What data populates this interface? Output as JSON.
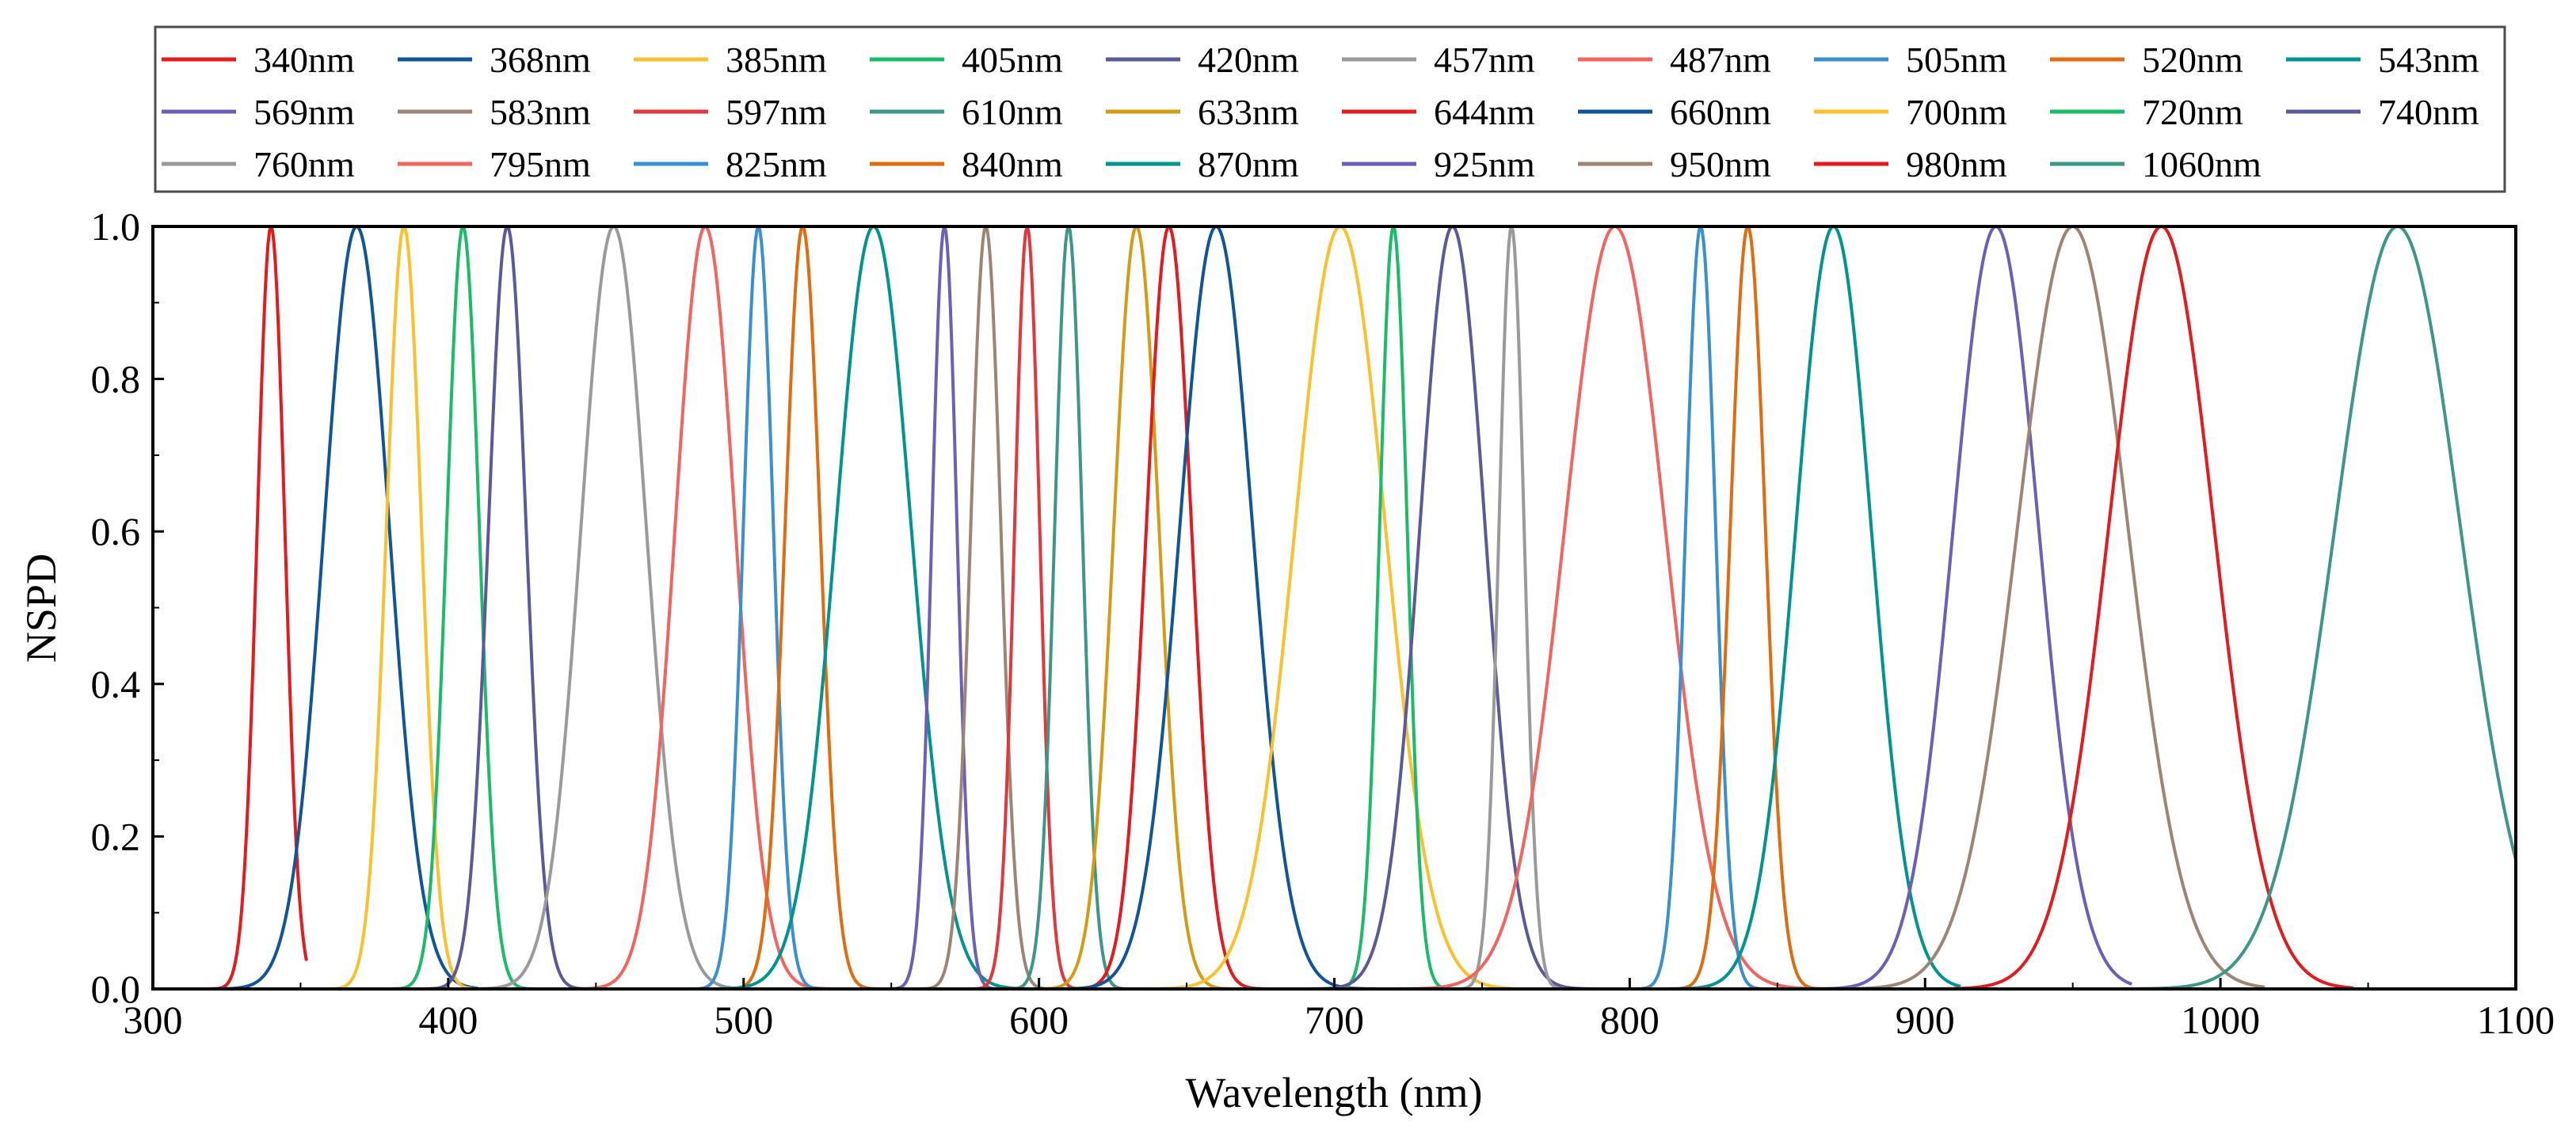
{
  "chart_data": {
    "type": "line",
    "title": "",
    "xlabel": "Wavelength (nm)",
    "ylabel": "NSPD",
    "xlim": [
      300,
      1100
    ],
    "ylim": [
      0,
      1.0
    ],
    "xticks": [
      300,
      400,
      500,
      600,
      700,
      800,
      900,
      1000,
      1100
    ],
    "xtick_labels": [
      "300",
      "400",
      "500",
      "600",
      "700",
      "800",
      "900",
      "1000",
      "1100"
    ],
    "yticks": [
      0,
      0.2,
      0.4,
      0.6,
      0.8,
      1.0
    ],
    "ytick_labels": [
      "0.0",
      "0.2",
      "0.4",
      "0.6",
      "0.8",
      "1.0"
    ],
    "grid": false,
    "legend_location": "top",
    "series_shape": "gaussian peak normalized to 1.0; each curve spans the listed wavelength range",
    "series": [
      {
        "name": "340nm",
        "peak": 340,
        "fwhm": 11,
        "range": [
          301,
          352
        ],
        "color": "#e41a1c"
      },
      {
        "name": "368nm",
        "peak": 369,
        "fwhm": 26,
        "range": [
          300,
          410
        ],
        "color": "#0f5597"
      },
      {
        "name": "385nm",
        "peak": 385,
        "fwhm": 14,
        "range": [
          342,
          420
        ],
        "color": "#fbc02d"
      },
      {
        "name": "405nm",
        "peak": 405,
        "fwhm": 13,
        "range": [
          362,
          450
        ],
        "color": "#1abc6a"
      },
      {
        "name": "420nm",
        "peak": 420,
        "fwhm": 15,
        "range": [
          378,
          466
        ],
        "color": "#5a5a9a"
      },
      {
        "name": "457nm",
        "peak": 456,
        "fwhm": 26,
        "range": [
          400,
          520
        ],
        "color": "#9a9a9a"
      },
      {
        "name": "487nm",
        "peak": 487,
        "fwhm": 24,
        "range": [
          440,
          534
        ],
        "color": "#f4645e"
      },
      {
        "name": "505nm",
        "peak": 505,
        "fwhm": 12,
        "range": [
          470,
          545
        ],
        "color": "#3a8fcf"
      },
      {
        "name": "520nm",
        "peak": 520,
        "fwhm": 14,
        "range": [
          480,
          565
        ],
        "color": "#e06c0f"
      },
      {
        "name": "543nm",
        "peak": 544,
        "fwhm": 30,
        "range": [
          490,
          610
        ],
        "color": "#009490"
      },
      {
        "name": "569nm",
        "peak": 568,
        "fwhm": 10,
        "range": [
          526,
          605
        ],
        "color": "#6b5fb8"
      },
      {
        "name": "583nm",
        "peak": 582,
        "fwhm": 12,
        "range": [
          540,
          625
        ],
        "color": "#9b8676"
      },
      {
        "name": "597nm",
        "peak": 596,
        "fwhm": 10,
        "range": [
          555,
          638
        ],
        "color": "#e0383e"
      },
      {
        "name": "610nm",
        "peak": 610,
        "fwhm": 11,
        "range": [
          565,
          650
        ],
        "color": "#3e9686"
      },
      {
        "name": "633nm",
        "peak": 633,
        "fwhm": 18,
        "range": [
          590,
          680
        ],
        "color": "#d69b14"
      },
      {
        "name": "644nm",
        "peak": 644,
        "fwhm": 18,
        "range": [
          600,
          690
        ],
        "color": "#e41a1c"
      },
      {
        "name": "660nm",
        "peak": 660,
        "fwhm": 29,
        "range": [
          605,
          740
        ],
        "color": "#0f5597"
      },
      {
        "name": "700nm",
        "peak": 702,
        "fwhm": 36,
        "range": [
          620,
          760
        ],
        "color": "#fbc02d"
      },
      {
        "name": "720nm",
        "peak": 720,
        "fwhm": 11,
        "range": [
          690,
          755
        ],
        "color": "#1abc6a"
      },
      {
        "name": "740nm",
        "peak": 740,
        "fwhm": 26,
        "range": [
          660,
          815
        ],
        "color": "#5a5a9a"
      },
      {
        "name": "760nm",
        "peak": 760,
        "fwhm": 10,
        "range": [
          730,
          790
        ],
        "color": "#9a9a9a"
      },
      {
        "name": "795nm",
        "peak": 795,
        "fwhm": 40,
        "range": [
          705,
          885
        ],
        "color": "#f4645e"
      },
      {
        "name": "825nm",
        "peak": 824,
        "fwhm": 12,
        "range": [
          795,
          865
        ],
        "color": "#3a8fcf"
      },
      {
        "name": "840nm",
        "peak": 840,
        "fwhm": 14,
        "range": [
          800,
          880
        ],
        "color": "#e06c0f"
      },
      {
        "name": "870nm",
        "peak": 869,
        "fwhm": 30,
        "range": [
          800,
          912
        ],
        "color": "#009490"
      },
      {
        "name": "925nm",
        "peak": 924,
        "fwhm": 34,
        "range": [
          860,
          970
        ],
        "color": "#6b5fb8"
      },
      {
        "name": "950nm",
        "peak": 950,
        "fwhm": 44,
        "range": [
          825,
          1015
        ],
        "color": "#9b8676"
      },
      {
        "name": "980nm",
        "peak": 980,
        "fwhm": 42,
        "range": [
          855,
          1045
        ],
        "color": "#e41a1c"
      },
      {
        "name": "1060nm",
        "peak": 1060,
        "fwhm": 50,
        "range": [
          933,
          1100
        ],
        "color": "#3e9686"
      }
    ]
  }
}
